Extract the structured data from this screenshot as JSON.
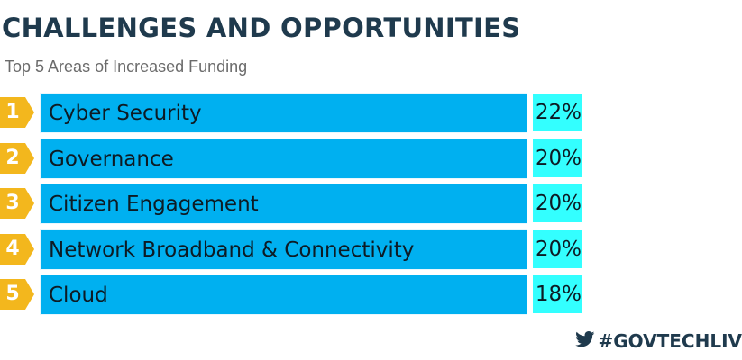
{
  "header": {
    "title": "CHALLENGES AND OPPORTUNITIES",
    "subtitle": "Top 5 Areas of Increased Funding"
  },
  "footer": {
    "hashtag": "#GOVTECHLIV",
    "icon": "twitter-bird-icon"
  },
  "colors": {
    "bar": "#00b0f0",
    "value_box": "#33ffff",
    "rank_badge": "#f3b71d",
    "title": "#1f3a4d"
  },
  "chart_data": {
    "type": "bar",
    "orientation": "horizontal",
    "title": "CHALLENGES AND OPPORTUNITIES",
    "subtitle": "Top 5 Areas of Increased Funding",
    "ranks": [
      "1",
      "2",
      "3",
      "4",
      "5"
    ],
    "categories": [
      "Cyber Security",
      "Governance",
      "Citizen Engagement",
      "Network Broadband & Connectivity",
      "Cloud"
    ],
    "values": [
      22,
      20,
      20,
      20,
      18
    ],
    "value_labels": [
      "22%",
      "20%",
      "20%",
      "20%",
      "18%"
    ],
    "unit": "%"
  }
}
